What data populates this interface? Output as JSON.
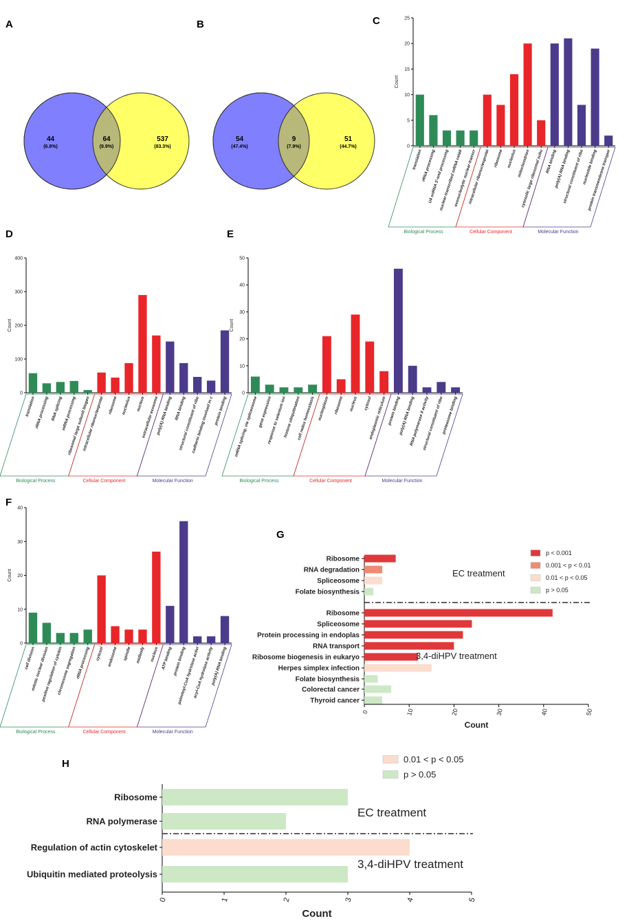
{
  "panel_labels": {
    "A": "A",
    "B": "B",
    "C": "C",
    "D": "D",
    "E": "E",
    "F": "F",
    "G": "G",
    "H": "H"
  },
  "colors": {
    "bp": "#2e8b57",
    "cc": "#e8262a",
    "mf": "#4b3b8a",
    "venn_left": "#8080ff",
    "venn_right": "#ffff66",
    "venn_mid": "#b8b87a"
  },
  "chart_data": [
    {
      "id": "A",
      "type": "venn",
      "sets": [
        {
          "region": "left",
          "count": "44",
          "pct": "(6.8%)"
        },
        {
          "region": "overlap",
          "count": "64",
          "pct": "(9.9%)"
        },
        {
          "region": "right",
          "count": "537",
          "pct": "(83.3%)"
        }
      ]
    },
    {
      "id": "B",
      "type": "venn",
      "sets": [
        {
          "region": "left",
          "count": "54",
          "pct": "(47.4%)"
        },
        {
          "region": "overlap",
          "count": "9",
          "pct": "(7.9%)"
        },
        {
          "region": "right",
          "count": "51",
          "pct": "(44.7%)"
        }
      ]
    },
    {
      "id": "C",
      "type": "bar",
      "ylabel": "Count",
      "ylim": [
        0,
        25
      ],
      "yticks": [
        "0",
        "5",
        "10",
        "15",
        "20",
        "25"
      ],
      "groups": [
        {
          "name": "Biological Process",
          "key": "bp",
          "categories": [
            "translation",
            "rRNA processing",
            "U4 snRNA 3'-end processing",
            "nuclear-transcribed mRNA catab",
            "exonucleolytic nuclear-transcr"
          ],
          "values": [
            10,
            6,
            3,
            3,
            3
          ]
        },
        {
          "name": "Cellular Component",
          "key": "cc",
          "categories": [
            "intracellular ribonucleoprotei",
            "ribosome",
            "nucleolus",
            "mitochondrion",
            "cytosolic large ribosomal subu"
          ],
          "values": [
            10,
            8,
            14,
            20,
            5
          ]
        },
        {
          "name": "Molecular Function",
          "key": "mf",
          "categories": [
            "RNA binding",
            "poly(A) RNA binding",
            "structural constituent of ribo",
            "nucleotide binding",
            "protein transmembrane transpor"
          ],
          "values": [
            20,
            21,
            8,
            19,
            2
          ]
        }
      ]
    },
    {
      "id": "D",
      "type": "bar",
      "ylabel": "Count",
      "ylim": [
        0,
        400
      ],
      "yticks": [
        "0",
        "100",
        "200",
        "300",
        "400"
      ],
      "groups": [
        {
          "name": "Biological Process",
          "key": "bp",
          "categories": [
            "translation",
            "rRNA processing",
            "RNA splicing",
            "mRNA processing",
            "ribosomal large subunit biogen"
          ],
          "values": [
            58,
            28,
            32,
            35,
            8
          ]
        },
        {
          "name": "Cellular Component",
          "key": "cc",
          "categories": [
            "intracellular ribonucleoprotei",
            "ribosome",
            "nucleolus",
            "nucleus",
            "extracellular exosome"
          ],
          "values": [
            60,
            45,
            88,
            290,
            170
          ]
        },
        {
          "name": "Molecular Function",
          "key": "mf",
          "categories": [
            "poly(A) RNA binding",
            "RNA binding",
            "structural constituent of ribo",
            "cadherin binding involved in c",
            "protein binding"
          ],
          "values": [
            152,
            88,
            47,
            36,
            185
          ]
        }
      ]
    },
    {
      "id": "E",
      "type": "bar",
      "ylabel": "Count",
      "ylim": [
        0,
        50
      ],
      "yticks": [
        "0",
        "10",
        "20",
        "30",
        "40",
        "50"
      ],
      "groups": [
        {
          "name": "Biological Process",
          "key": "bp",
          "categories": [
            "mRNA splicing, via spliceosome",
            "gene expression",
            "response to selenium ion",
            "histone ubiquitination",
            "cell redox homeostasis"
          ],
          "values": [
            6,
            3,
            2,
            2,
            3
          ]
        },
        {
          "name": "Cellular Component",
          "key": "cc",
          "categories": [
            "nucleoplasm",
            "ribosome",
            "nucleus",
            "cytosol",
            "endoplasmic reticulum"
          ],
          "values": [
            21,
            5,
            29,
            19,
            8
          ]
        },
        {
          "name": "Molecular Function",
          "key": "mf",
          "categories": [
            "protein binding",
            "poly(A) RNA binding",
            "RNA polymerase II activity",
            "structural constituent of ribo",
            "proteasome binding"
          ],
          "values": [
            46,
            10,
            2,
            4,
            2
          ]
        }
      ]
    },
    {
      "id": "F",
      "type": "bar",
      "ylabel": "Count",
      "ylim": [
        0,
        40
      ],
      "yticks": [
        "0",
        "10",
        "20",
        "30",
        "40"
      ],
      "groups": [
        {
          "name": "Biological Process",
          "key": "bp",
          "categories": [
            "cell division",
            "mitotic nuclear division",
            "positive regulation of cytokin",
            "chromosome segregation",
            "rRNA processing"
          ],
          "values": [
            9,
            6,
            3,
            3,
            4
          ]
        },
        {
          "name": "Cellular Component",
          "key": "cc",
          "categories": [
            "cytosol",
            "endosome",
            "spindle",
            "midbody",
            "nucleus"
          ],
          "values": [
            20,
            5,
            4,
            4,
            27
          ]
        },
        {
          "name": "Molecular Function",
          "key": "mf",
          "categories": [
            "ATP binding",
            "protein binding",
            "palmitoyl-CoA hydrolase activi",
            "acyl-CoA hydrolase activity",
            "poly(A) RNA binding"
          ],
          "values": [
            11,
            36,
            2,
            2,
            8
          ]
        }
      ]
    },
    {
      "id": "G",
      "type": "hbar",
      "xlabel": "Count",
      "xlim": [
        0,
        50
      ],
      "xticks": [
        "0",
        "10",
        "20",
        "30",
        "40",
        "50"
      ],
      "legend": [
        {
          "label": "p < 0.001",
          "color": "#e0383a"
        },
        {
          "label": "0.001 < p < 0.01",
          "color": "#ef8a74"
        },
        {
          "label": "0.01 < p < 0.05",
          "color": "#fbdccd"
        },
        {
          "label": "p > 0.05",
          "color": "#cde8c5"
        }
      ],
      "group_labels": [
        "EC treatment",
        "3,4-diHPV treatment"
      ],
      "categories": [
        "Ribosome",
        "RNA degradation",
        "Spliceosome",
        "Folate biosynthesis",
        "Ribosome",
        "Spliceosome",
        "Protein processing in endoplas",
        "RNA transport",
        "Ribosome biogenesis in eukaryo",
        "Herpes simplex infection",
        "Folate biosynthesis",
        "Colorectal cancer",
        "Thyroid cancer"
      ],
      "values": [
        7,
        4,
        4,
        2,
        42,
        24,
        22,
        20,
        12,
        15,
        3,
        6,
        4
      ],
      "sig": [
        0,
        1,
        2,
        3,
        0,
        0,
        0,
        0,
        0,
        2,
        3,
        3,
        3
      ],
      "group_of": [
        0,
        0,
        0,
        0,
        1,
        1,
        1,
        1,
        1,
        1,
        1,
        1,
        1
      ]
    },
    {
      "id": "H",
      "type": "hbar",
      "xlabel": "Count",
      "xlim": [
        0,
        5
      ],
      "xticks": [
        "0",
        "1",
        "2",
        "3",
        "4",
        "5"
      ],
      "legend": [
        {
          "label": "0.01 < p < 0.05",
          "color": "#fbdccd"
        },
        {
          "label": "p > 0.05",
          "color": "#cde8c5"
        }
      ],
      "group_labels": [
        "EC treatment",
        "3,4-diHPV treatment"
      ],
      "categories": [
        "Ribosome",
        "RNA polymerase",
        "Regulation of actin cytoskelet",
        "Ubiquitin mediated proteolysis"
      ],
      "values": [
        3,
        2,
        4,
        3
      ],
      "sig": [
        1,
        1,
        0,
        1
      ],
      "group_of": [
        0,
        0,
        1,
        1
      ]
    }
  ]
}
